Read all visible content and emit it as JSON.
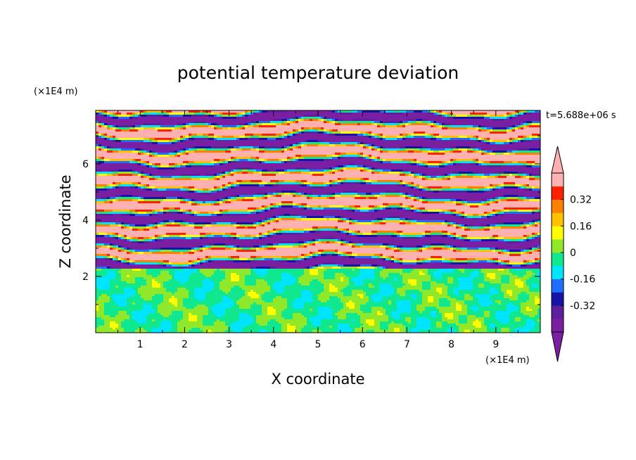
{
  "chart_data": {
    "type": "heatmap",
    "title": "potential temperature deviation",
    "xlabel": "X coordinate",
    "ylabel": "Z coordinate",
    "x_unit": "(×1E4 m)",
    "z_unit": "(×1E4 m)",
    "time_label": "t=5.688e+06 s",
    "xlim": [
      0,
      10
    ],
    "ylim": [
      0,
      7.9
    ],
    "x_ticks": [
      1,
      2,
      3,
      4,
      5,
      6,
      7,
      8,
      9
    ],
    "y_ticks": [
      2,
      4,
      6
    ],
    "colorbar": {
      "levels": [
        -0.48,
        -0.4,
        -0.32,
        -0.24,
        -0.16,
        -0.08,
        0,
        0.08,
        0.16,
        0.24,
        0.32,
        0.4,
        0.48
      ],
      "colors": [
        "#7b1fa2",
        "#5e1f9e",
        "#1414a8",
        "#1f6fff",
        "#00e5ff",
        "#10e890",
        "#8fe82a",
        "#ffff00",
        "#ffc000",
        "#ff8000",
        "#ff2000",
        "#ffb0b0"
      ],
      "under_color": "#7b1fa2",
      "over_color": "#ffb0b0",
      "tick_labels": [
        "0.32",
        "0.16",
        "0",
        "-0.16",
        "-0.32"
      ],
      "tick_values": [
        0.32,
        0.16,
        0,
        -0.16,
        -0.32
      ]
    },
    "field_description": "alternating pink (>0.48) and purple (<-0.48) horizontal bands for z > 2.3; green (about -0.08 to 0.08) mixed layer below z = 2.3"
  }
}
